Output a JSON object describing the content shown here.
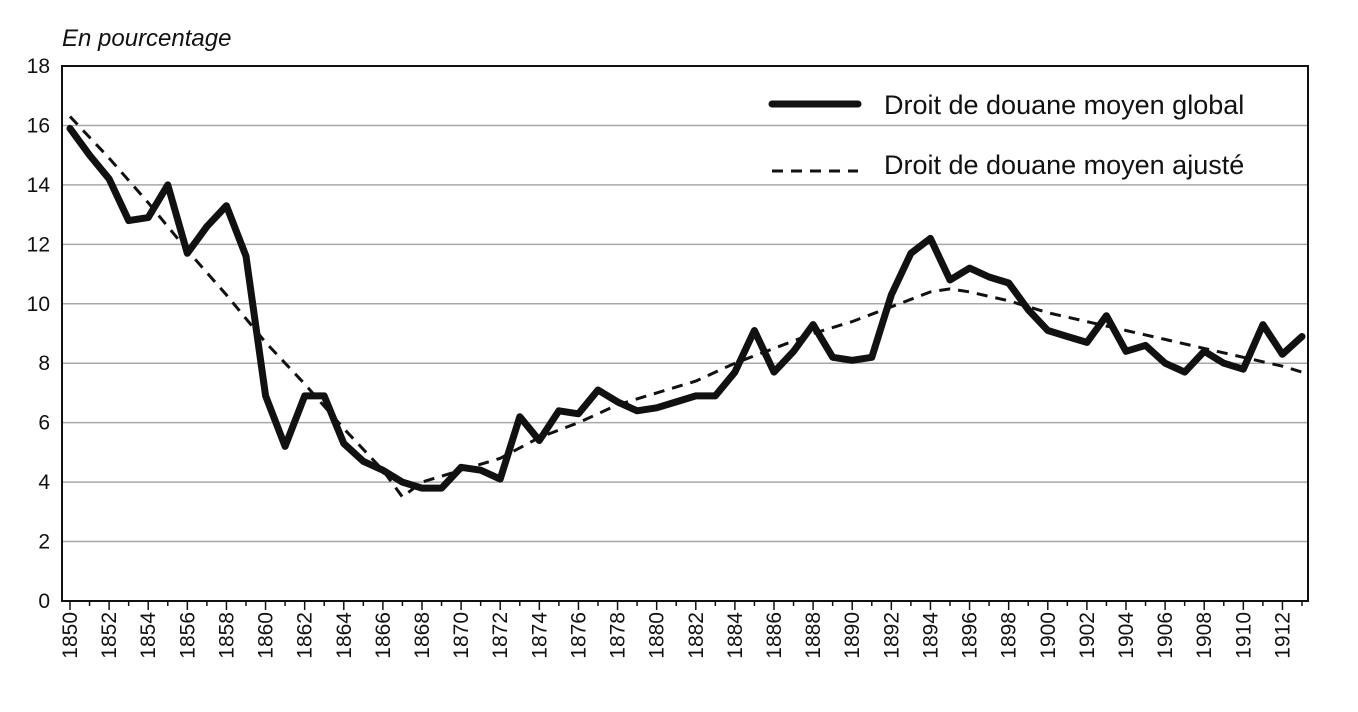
{
  "chart_data": {
    "type": "line",
    "title": "",
    "ylabel": "En pourcentage",
    "xlabel": "",
    "ylim": [
      0,
      18
    ],
    "yticks": [
      0,
      2,
      4,
      6,
      8,
      10,
      12,
      14,
      16,
      18
    ],
    "xlim": [
      1850,
      1913
    ],
    "xticks": [
      1850,
      1852,
      1854,
      1856,
      1858,
      1860,
      1862,
      1864,
      1866,
      1868,
      1870,
      1872,
      1874,
      1876,
      1878,
      1880,
      1882,
      1884,
      1886,
      1888,
      1890,
      1892,
      1894,
      1896,
      1898,
      1900,
      1902,
      1904,
      1906,
      1908,
      1910,
      1912
    ],
    "grid": "horizontal",
    "legend_position": "top-right",
    "series": [
      {
        "name": "Droit de douane moyen global",
        "style": "solid-thick",
        "x": [
          1850,
          1851,
          1852,
          1853,
          1854,
          1855,
          1856,
          1857,
          1858,
          1859,
          1860,
          1861,
          1862,
          1863,
          1864,
          1865,
          1866,
          1867,
          1868,
          1869,
          1870,
          1871,
          1872,
          1873,
          1874,
          1875,
          1876,
          1877,
          1878,
          1879,
          1880,
          1881,
          1882,
          1883,
          1884,
          1885,
          1886,
          1887,
          1888,
          1889,
          1890,
          1891,
          1892,
          1893,
          1894,
          1895,
          1896,
          1897,
          1898,
          1899,
          1900,
          1901,
          1902,
          1903,
          1904,
          1905,
          1906,
          1907,
          1908,
          1909,
          1910,
          1911,
          1912,
          1913
        ],
        "values": [
          15.9,
          15.0,
          14.2,
          12.8,
          12.9,
          14.0,
          11.7,
          12.6,
          13.3,
          11.6,
          6.9,
          5.2,
          6.9,
          6.9,
          5.3,
          4.7,
          4.4,
          4.0,
          3.8,
          3.8,
          4.5,
          4.4,
          4.1,
          6.2,
          5.4,
          6.4,
          6.3,
          7.1,
          6.7,
          6.4,
          6.5,
          6.7,
          6.9,
          6.9,
          7.7,
          9.1,
          7.7,
          8.4,
          9.3,
          8.2,
          8.1,
          8.2,
          10.3,
          11.7,
          12.2,
          10.8,
          11.2,
          10.9,
          10.7,
          9.8,
          9.1,
          8.9,
          8.7,
          9.6,
          8.4,
          8.6,
          8.0,
          7.7,
          8.4,
          8.0,
          7.8,
          9.3,
          8.3,
          8.9
        ]
      },
      {
        "name": "Droit de douane moyen ajusté",
        "style": "dashed",
        "x": [
          1850,
          1852,
          1854,
          1856,
          1858,
          1860,
          1862,
          1864,
          1866,
          1867,
          1868,
          1870,
          1872,
          1874,
          1876,
          1878,
          1880,
          1882,
          1884,
          1886,
          1888,
          1890,
          1892,
          1894,
          1895,
          1896,
          1898,
          1900,
          1902,
          1904,
          1906,
          1908,
          1910,
          1912,
          1913
        ],
        "values": [
          16.3,
          14.9,
          13.4,
          11.8,
          10.3,
          8.7,
          7.3,
          5.8,
          4.4,
          3.5,
          4.0,
          4.4,
          4.8,
          5.5,
          6.0,
          6.6,
          7.0,
          7.4,
          8.0,
          8.5,
          9.0,
          9.4,
          9.9,
          10.4,
          10.5,
          10.4,
          10.1,
          9.7,
          9.4,
          9.1,
          8.8,
          8.5,
          8.2,
          7.9,
          7.7
        ]
      }
    ]
  }
}
